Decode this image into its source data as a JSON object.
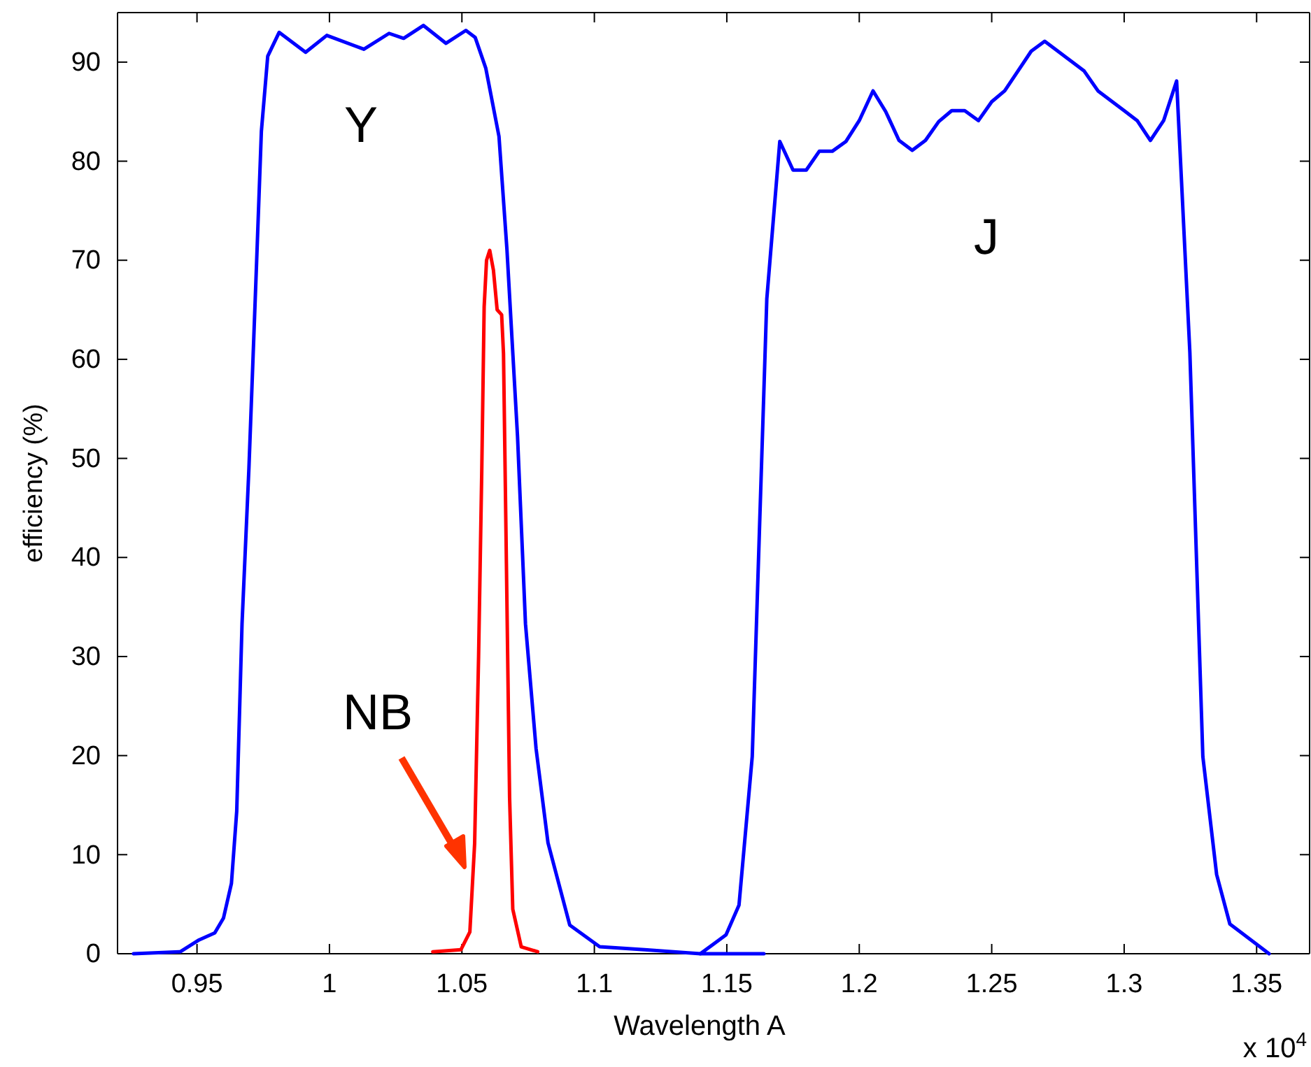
{
  "chart_data": {
    "type": "line",
    "xlabel": "Wavelength A",
    "ylabel": "efficiency (%)",
    "annotations": [
      "x 10$^{4}$"
    ],
    "xlim": [
      0.92,
      1.37
    ],
    "xticks": [
      0.95,
      1,
      1.05,
      1.1,
      1.15,
      1.2,
      1.25,
      1.3,
      1.35
    ],
    "ylim": [
      0,
      95
    ],
    "yticks": [
      0,
      10,
      20,
      30,
      40,
      50,
      60,
      70,
      80,
      90
    ],
    "grid": false,
    "marker": "none",
    "line_style": "solid",
    "series": [
      {
        "name": "Y",
        "color": "#0000ff",
        "x": [
          0.926,
          0.9437,
          0.9508,
          0.9567,
          0.96,
          0.963,
          0.965,
          0.967,
          0.9696,
          0.9725,
          0.9743,
          0.9767,
          0.981,
          0.991,
          0.999,
          1.013,
          1.0225,
          1.028,
          1.0355,
          1.044,
          1.0515,
          1.055,
          1.059,
          1.064,
          1.067,
          1.071,
          1.074,
          1.078,
          1.0825,
          1.0907,
          1.102,
          1.119,
          1.14
        ],
        "values": [
          0,
          0.2,
          1.4,
          2.1,
          3.6,
          7.1,
          14.4,
          33.3,
          49,
          69.8,
          83,
          90.6,
          93,
          91,
          92.7,
          91.3,
          92.9,
          92.4,
          93.7,
          91.9,
          93.2,
          92.5,
          89.4,
          82.5,
          71.1,
          52.2,
          33.3,
          20.7,
          11.2,
          2.9,
          0.7,
          0.4,
          0
        ]
      },
      {
        "name": "J",
        "color": "#0000ff",
        "x": [
          1.164,
          1.14,
          1.1497,
          1.1546,
          1.1596,
          1.1651,
          1.17,
          1.175,
          1.18,
          1.1849,
          1.1898,
          1.195,
          1.2,
          1.2052,
          1.21,
          1.215,
          1.22,
          1.225,
          1.23,
          1.2349,
          1.2398,
          1.245,
          1.25,
          1.2549,
          1.2599,
          1.2649,
          1.27,
          1.275,
          1.28,
          1.2849,
          1.2901,
          1.295,
          1.3,
          1.3049,
          1.3099,
          1.3149,
          1.3198,
          1.3248,
          1.3297,
          1.3349,
          1.3399,
          1.3547
        ],
        "values": [
          0,
          0,
          1.9,
          4.9,
          19.9,
          66.1,
          82,
          79.1,
          79.1,
          81,
          81,
          82,
          84.1,
          87.1,
          85,
          82.1,
          81.1,
          82.1,
          84,
          85.1,
          85.1,
          84.1,
          86,
          87.1,
          89.1,
          91.1,
          92.1,
          91.1,
          90.1,
          89.1,
          87.1,
          86.1,
          85.1,
          84.1,
          82.1,
          84.1,
          88.1,
          60.7,
          19.9,
          8,
          3,
          0
        ]
      },
      {
        "name": "NB",
        "color": "#ff0000",
        "x": [
          1.039,
          1.0496,
          1.053,
          1.0548,
          1.0563,
          1.0575,
          1.0584,
          1.0593,
          1.0605,
          1.0619,
          1.0633,
          1.065,
          1.0657,
          1.0668,
          1.068,
          1.0692,
          1.0724,
          1.0786
        ],
        "values": [
          0.2,
          0.4,
          2.2,
          11.1,
          30,
          48.8,
          65.3,
          70,
          71,
          69,
          65,
          64.5,
          60.6,
          39.4,
          15.8,
          4.5,
          0.7,
          0.2
        ]
      }
    ]
  }
}
